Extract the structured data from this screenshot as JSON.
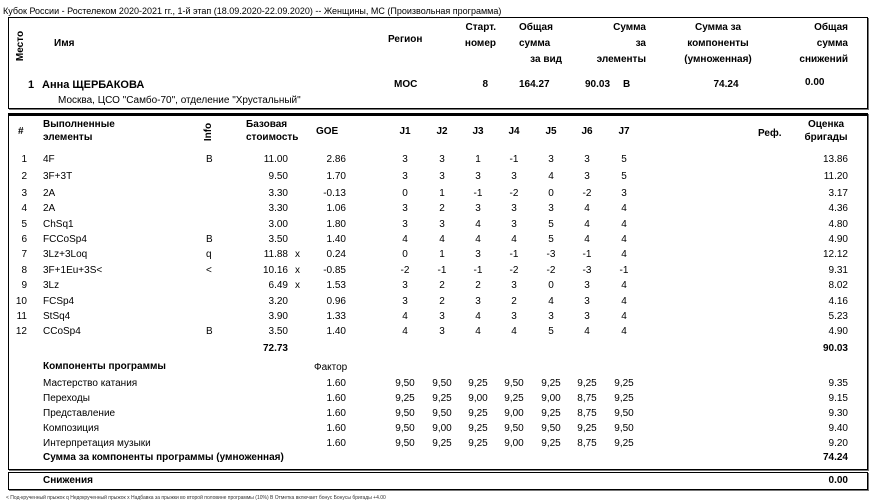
{
  "title": "Кубок России - Ростелеком 2020-2021 гг., 1-й этап (18.09.2020-22.09.2020)  --  Женщины, МС  (Произвольная программа)",
  "header": {
    "place": "Место",
    "name": "Имя",
    "region": "Регион",
    "start1": "Старт.",
    "start2": "номер",
    "total1": "Общая",
    "total2": "сумма",
    "total3": "за вид",
    "elem1": "Сумма",
    "elem2": "за",
    "elem3": "элементы",
    "comp1": "Сумма за",
    "comp2": "компоненты",
    "comp3": "(умноженная)",
    "ded1": "Общая",
    "ded2": "сумма",
    "ded3": "снижений"
  },
  "skater": {
    "rank": "1",
    "name": "Анна ЩЕРБАКОВА",
    "club": "Москва, ЦСО \"Самбо-70\", отделение \"Хрустальный\"",
    "region": "МОС",
    "start": "8",
    "total": "164.27",
    "elements": "90.03",
    "elements_flag": "B",
    "components": "74.24",
    "deductions": "0.00"
  },
  "elements_header": {
    "num": "#",
    "el1": "Выполненные",
    "el2": "элементы",
    "info": "Info",
    "bv1": "Базовая",
    "bv2": "стоимость",
    "goe": "GOE",
    "judges": [
      "J1",
      "J2",
      "J3",
      "J4",
      "J5",
      "J6",
      "J7"
    ],
    "ref": "Реф.",
    "score1": "Оценка",
    "score2": "бригады"
  },
  "elements": [
    {
      "n": "1",
      "el": "4F",
      "info": "B",
      "bv": "11.00",
      "x": "",
      "goe": "2.86",
      "j": [
        "3",
        "3",
        "1",
        "-1",
        "3",
        "3",
        "5"
      ],
      "score": "13.86"
    },
    {
      "n": "2",
      "el": "3F+3T",
      "info": "",
      "bv": "9.50",
      "x": "",
      "goe": "1.70",
      "j": [
        "3",
        "3",
        "3",
        "3",
        "4",
        "3",
        "5"
      ],
      "score": "11.20"
    },
    {
      "n": "3",
      "el": "2A",
      "info": "",
      "bv": "3.30",
      "x": "",
      "goe": "-0.13",
      "j": [
        "0",
        "1",
        "-1",
        "-2",
        "0",
        "-2",
        "3"
      ],
      "score": "3.17"
    },
    {
      "n": "4",
      "el": "2A",
      "info": "",
      "bv": "3.30",
      "x": "",
      "goe": "1.06",
      "j": [
        "3",
        "2",
        "3",
        "3",
        "3",
        "4",
        "4"
      ],
      "score": "4.36"
    },
    {
      "n": "5",
      "el": "ChSq1",
      "info": "",
      "bv": "3.00",
      "x": "",
      "goe": "1.80",
      "j": [
        "3",
        "3",
        "4",
        "3",
        "5",
        "4",
        "4"
      ],
      "score": "4.80"
    },
    {
      "n": "6",
      "el": "FCCoSp4",
      "info": "B",
      "bv": "3.50",
      "x": "",
      "goe": "1.40",
      "j": [
        "4",
        "4",
        "4",
        "4",
        "5",
        "4",
        "4"
      ],
      "score": "4.90"
    },
    {
      "n": "7",
      "el": "3Lz+3Loq",
      "info": "q",
      "bv": "11.88",
      "x": "x",
      "goe": "0.24",
      "j": [
        "0",
        "1",
        "3",
        "-1",
        "-3",
        "-1",
        "4"
      ],
      "score": "12.12"
    },
    {
      "n": "8",
      "el": "3F+1Eu+3S<",
      "info": "<",
      "bv": "10.16",
      "x": "x",
      "goe": "-0.85",
      "j": [
        "-2",
        "-1",
        "-1",
        "-2",
        "-2",
        "-3",
        "-1"
      ],
      "score": "9.31"
    },
    {
      "n": "9",
      "el": "3Lz",
      "info": "",
      "bv": "6.49",
      "x": "x",
      "goe": "1.53",
      "j": [
        "3",
        "2",
        "2",
        "3",
        "0",
        "3",
        "4"
      ],
      "score": "8.02"
    },
    {
      "n": "10",
      "el": "FCSp4",
      "info": "",
      "bv": "3.20",
      "x": "",
      "goe": "0.96",
      "j": [
        "3",
        "2",
        "3",
        "2",
        "4",
        "3",
        "4"
      ],
      "score": "4.16"
    },
    {
      "n": "11",
      "el": "StSq4",
      "info": "",
      "bv": "3.90",
      "x": "",
      "goe": "1.33",
      "j": [
        "4",
        "3",
        "4",
        "3",
        "3",
        "3",
        "4"
      ],
      "score": "5.23"
    },
    {
      "n": "12",
      "el": "CCoSp4",
      "info": "B",
      "bv": "3.50",
      "x": "",
      "goe": "1.40",
      "j": [
        "4",
        "3",
        "4",
        "4",
        "5",
        "4",
        "4"
      ],
      "score": "4.90"
    }
  ],
  "elements_total": {
    "bv": "72.73",
    "score": "90.03"
  },
  "components_header": {
    "title": "Компоненты программы",
    "factor": "Фактор"
  },
  "components": [
    {
      "name": "Мастерство катания",
      "factor": "1.60",
      "j": [
        "9,50",
        "9,50",
        "9,25",
        "9,50",
        "9,25",
        "9,25",
        "9,25"
      ],
      "score": "9.35"
    },
    {
      "name": "Переходы",
      "factor": "1.60",
      "j": [
        "9,25",
        "9,25",
        "9,00",
        "9,25",
        "9,00",
        "8,75",
        "9,25"
      ],
      "score": "9.15"
    },
    {
      "name": "Представление",
      "factor": "1.60",
      "j": [
        "9,50",
        "9,50",
        "9,25",
        "9,00",
        "9,25",
        "8,75",
        "9,50"
      ],
      "score": "9.30"
    },
    {
      "name": "Композиция",
      "factor": "1.60",
      "j": [
        "9,50",
        "9,00",
        "9,25",
        "9,50",
        "9,50",
        "9,25",
        "9,50"
      ],
      "score": "9.40"
    },
    {
      "name": "Интерпретация музыки",
      "factor": "1.60",
      "j": [
        "9,50",
        "9,25",
        "9,25",
        "9,00",
        "9,25",
        "8,75",
        "9,25"
      ],
      "score": "9.20"
    }
  ],
  "components_total": {
    "label": "Сумма за компоненты программы (умноженная)",
    "score": "74.24"
  },
  "deductions": {
    "label": "Снижения",
    "score": "0.00"
  },
  "footnote": "< Под-крученный прыжок    q Недокрученный прыжок    x Надбавка за прыжки во второй половине программы (10%)    B Отметка включает бонус    Бонусы бригады +4.00"
}
